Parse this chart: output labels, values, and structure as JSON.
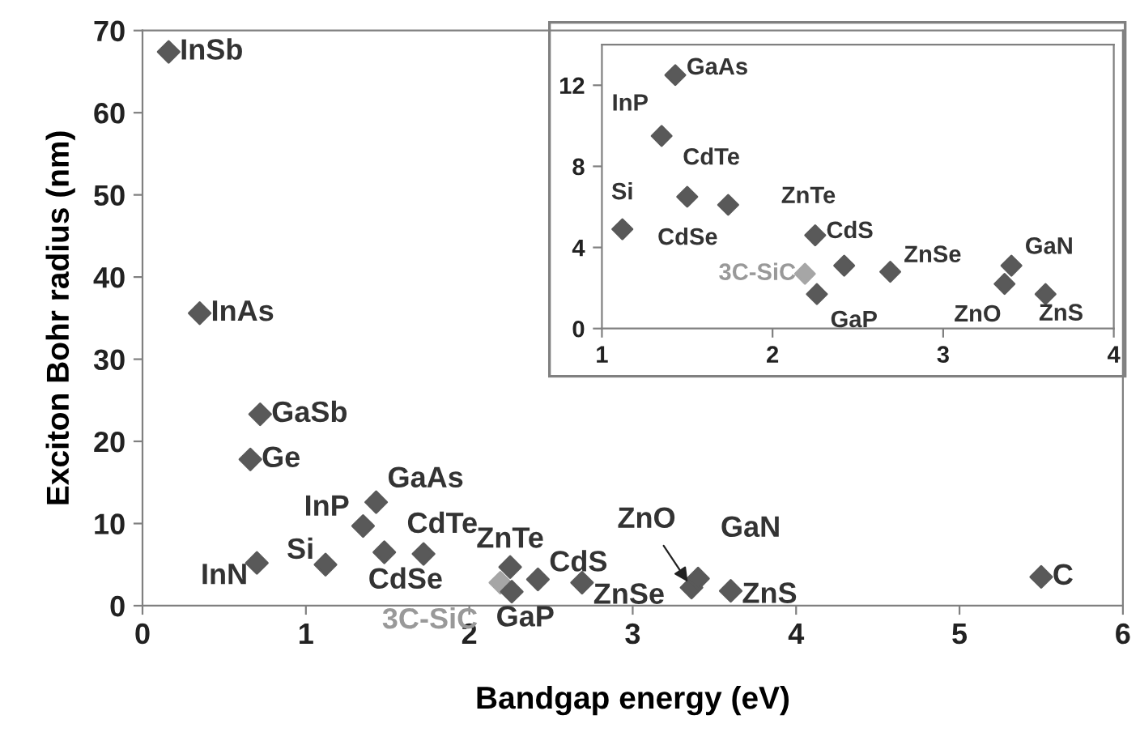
{
  "chart_data": [
    {
      "type": "scatter",
      "xlabel": "Bandgap energy (eV)",
      "ylabel": "Exciton Bohr radius (nm)",
      "xlim": [
        0,
        6
      ],
      "ylim": [
        0,
        70
      ],
      "xticks": [
        0,
        1,
        2,
        3,
        4,
        5,
        6
      ],
      "yticks": [
        0,
        10,
        20,
        30,
        40,
        50,
        60,
        70
      ],
      "grid": false,
      "legend": false,
      "marker": "diamond",
      "series": [
        {
          "x": [
            0.16,
            0.35,
            0.72,
            0.66,
            0.7,
            1.12,
            1.35,
            1.43,
            1.48,
            1.72,
            2.25,
            2.19,
            2.26,
            2.42,
            2.69,
            3.36,
            3.4,
            3.6,
            5.5
          ],
          "values": [
            67.4,
            35.6,
            23.3,
            17.8,
            5.2,
            5.0,
            9.7,
            12.6,
            6.5,
            6.3,
            4.7,
            2.8,
            1.7,
            3.2,
            2.8,
            2.2,
            3.3,
            1.8,
            3.5
          ],
          "colors": [
            "#595959",
            "#595959",
            "#595959",
            "#595959",
            "#595959",
            "#595959",
            "#595959",
            "#595959",
            "#595959",
            "#595959",
            "#595959",
            "#a6a6a6",
            "#595959",
            "#595959",
            "#595959",
            "#595959",
            "#595959",
            "#595959",
            "#595959"
          ]
        }
      ],
      "annotations": [
        {
          "text": "InSb",
          "x": 0.16,
          "y": 67.4
        },
        {
          "text": "InAs",
          "x": 0.35,
          "y": 35.6
        },
        {
          "text": "GaSb",
          "x": 0.72,
          "y": 23.3
        },
        {
          "text": "Ge",
          "x": 0.66,
          "y": 17.8
        },
        {
          "text": "InN",
          "x": 0.7,
          "y": 5.2
        },
        {
          "text": "Si",
          "x": 1.12,
          "y": 5.0
        },
        {
          "text": "InP",
          "x": 1.35,
          "y": 9.7
        },
        {
          "text": "GaAs",
          "x": 1.43,
          "y": 12.6
        },
        {
          "text": "CdTe",
          "x": 1.48,
          "y": 6.5
        },
        {
          "text": "CdSe",
          "x": 1.72,
          "y": 6.3
        },
        {
          "text": "ZnTe",
          "x": 2.25,
          "y": 4.7
        },
        {
          "text": "3C-SiC",
          "x": 2.19,
          "y": 2.8
        },
        {
          "text": "GaP",
          "x": 2.26,
          "y": 1.7
        },
        {
          "text": "CdS",
          "x": 2.42,
          "y": 3.2
        },
        {
          "text": "ZnSe",
          "x": 2.69,
          "y": 2.8
        },
        {
          "text": "ZnO",
          "x": 3.36,
          "y": 2.2
        },
        {
          "text": "GaN",
          "x": 3.4,
          "y": 3.3
        },
        {
          "text": "ZnS",
          "x": 3.6,
          "y": 1.8
        },
        {
          "text": "C",
          "x": 5.5,
          "y": 3.5
        }
      ]
    },
    {
      "type": "scatter",
      "xlim": [
        1,
        4
      ],
      "ylim": [
        0,
        14
      ],
      "xticks": [
        1,
        2,
        3,
        4
      ],
      "yticks": [
        0,
        4,
        8,
        12
      ],
      "grid": false,
      "legend": false,
      "marker": "diamond",
      "series": [
        {
          "x": [
            1.12,
            1.35,
            1.43,
            1.5,
            1.74,
            2.25,
            2.19,
            2.26,
            2.42,
            2.69,
            3.36,
            3.4,
            3.6
          ],
          "values": [
            4.9,
            9.5,
            12.5,
            6.5,
            6.1,
            4.6,
            2.7,
            1.7,
            3.1,
            2.8,
            2.2,
            3.1,
            1.7
          ],
          "colors": [
            "#595959",
            "#595959",
            "#595959",
            "#595959",
            "#595959",
            "#595959",
            "#a6a6a6",
            "#595959",
            "#595959",
            "#595959",
            "#595959",
            "#595959",
            "#595959"
          ]
        }
      ],
      "annotations": [
        {
          "text": "Si",
          "x": 1.12,
          "y": 4.9
        },
        {
          "text": "InP",
          "x": 1.35,
          "y": 9.5
        },
        {
          "text": "GaAs",
          "x": 1.43,
          "y": 12.5
        },
        {
          "text": "CdTe",
          "x": 1.5,
          "y": 6.5
        },
        {
          "text": "CdSe",
          "x": 1.74,
          "y": 6.1
        },
        {
          "text": "ZnTe",
          "x": 2.25,
          "y": 4.6
        },
        {
          "text": "3C-SiC",
          "x": 2.19,
          "y": 2.7
        },
        {
          "text": "GaP",
          "x": 2.26,
          "y": 1.7
        },
        {
          "text": "CdS",
          "x": 2.42,
          "y": 3.1
        },
        {
          "text": "ZnSe",
          "x": 2.69,
          "y": 2.8
        },
        {
          "text": "ZnO",
          "x": 3.36,
          "y": 2.2
        },
        {
          "text": "GaN",
          "x": 3.4,
          "y": 3.1
        },
        {
          "text": "ZnS",
          "x": 3.6,
          "y": 1.7
        }
      ]
    }
  ]
}
